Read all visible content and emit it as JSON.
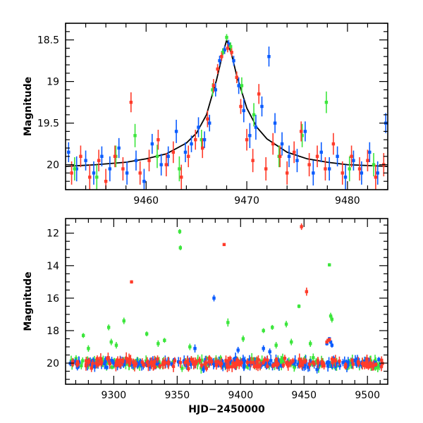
{
  "chart_data": [
    {
      "type": "scatter",
      "panel": "top",
      "xlabel": "",
      "ylabel": "Magnitude",
      "xlim": [
        9452,
        9484
      ],
      "ylim": [
        20.3,
        18.3
      ],
      "y_inverted": true,
      "xticks": [
        9460,
        9470,
        9480
      ],
      "xtick_labels": [
        "9460",
        "9470",
        "9480"
      ],
      "yticks": [
        18.5,
        19,
        19.5,
        20
      ],
      "ytick_labels": [
        "18.5",
        "19",
        "19.5",
        "20"
      ],
      "grid": false,
      "colors": {
        "blue": "#0b5cff",
        "green": "#3ce63c",
        "red": "#ff3b2a",
        "model": "#000000"
      },
      "model_curve": {
        "x": [
          9452,
          9455,
          9458,
          9460,
          9462,
          9464,
          9465,
          9466,
          9467,
          9467.5,
          9468,
          9468.5,
          9469,
          9470,
          9471,
          9472,
          9474,
          9476,
          9478,
          9480,
          9484
        ],
        "y": [
          20.02,
          20.0,
          19.97,
          19.93,
          19.87,
          19.74,
          19.62,
          19.4,
          18.98,
          18.72,
          18.5,
          18.68,
          18.93,
          19.32,
          19.55,
          19.69,
          19.85,
          19.93,
          19.97,
          20.0,
          20.02
        ]
      },
      "series": [
        {
          "color": "blue",
          "x": [
            9452.3,
            9453.1,
            9454.0,
            9454.8,
            9455.6,
            9456.4,
            9457.3,
            9458.1,
            9459.0,
            9459.8,
            9460.6,
            9461.5,
            9462.2,
            9463.0,
            9463.9,
            9464.5,
            9465.2,
            9465.8,
            9466.3,
            9466.9,
            9467.3,
            9467.8,
            9468.2,
            9468.7,
            9469.2,
            9469.7,
            9470.3,
            9470.9,
            9471.5,
            9472.2,
            9472.8,
            9473.5,
            9474.2,
            9475.0,
            9475.8,
            9476.6,
            9477.4,
            9478.2,
            9479.0,
            9479.8,
            9480.6,
            9481.4,
            9482.2,
            9483.0,
            9483.8
          ],
          "y": [
            19.85,
            20.05,
            19.95,
            20.1,
            19.9,
            20.05,
            19.8,
            20.1,
            19.95,
            20.2,
            19.75,
            20.0,
            19.9,
            19.6,
            19.85,
            19.75,
            19.55,
            19.7,
            19.5,
            19.1,
            18.75,
            18.62,
            18.55,
            18.75,
            19.05,
            19.35,
            19.65,
            19.55,
            19.3,
            18.7,
            19.5,
            19.75,
            19.9,
            19.95,
            19.6,
            20.1,
            19.85,
            20.05,
            19.9,
            20.15,
            19.95,
            20.1,
            19.85,
            20.1,
            19.5
          ],
          "err": [
            0.12,
            0.15,
            0.12,
            0.14,
            0.12,
            0.15,
            0.12,
            0.14,
            0.12,
            0.15,
            0.12,
            0.13,
            0.12,
            0.14,
            0.12,
            0.1,
            0.12,
            0.1,
            0.1,
            0.08,
            0.06,
            0.05,
            0.05,
            0.06,
            0.1,
            0.14,
            0.15,
            0.15,
            0.12,
            0.12,
            0.12,
            0.14,
            0.13,
            0.14,
            0.12,
            0.15,
            0.12,
            0.14,
            0.12,
            0.15,
            0.12,
            0.14,
            0.12,
            0.14,
            0.12
          ]
        },
        {
          "color": "green",
          "x": [
            9452.9,
            9455.1,
            9457.0,
            9458.9,
            9461.1,
            9463.3,
            9465.5,
            9466.6,
            9467.6,
            9468.0,
            9468.4,
            9469.0,
            9469.5,
            9470.7,
            9473.2,
            9475.5,
            9477.9,
            9480.2,
            9482.6
          ],
          "y": [
            20.05,
            20.15,
            19.9,
            19.65,
            19.9,
            20.05,
            19.7,
            19.1,
            18.65,
            18.47,
            18.58,
            18.95,
            19.05,
            19.4,
            19.9,
            19.65,
            19.25,
            20.05,
            20.0
          ],
          "err": [
            0.14,
            0.15,
            0.13,
            0.14,
            0.14,
            0.15,
            0.12,
            0.08,
            0.05,
            0.04,
            0.05,
            0.07,
            0.1,
            0.14,
            0.13,
            0.14,
            0.13,
            0.15,
            0.14
          ]
        },
        {
          "color": "red",
          "x": [
            9452.6,
            9453.5,
            9454.4,
            9455.3,
            9456.0,
            9456.9,
            9457.7,
            9458.5,
            9459.4,
            9460.3,
            9461.2,
            9462.0,
            9462.7,
            9463.5,
            9464.2,
            9464.9,
            9465.6,
            9466.1,
            9466.7,
            9467.1,
            9467.5,
            9468.1,
            9468.5,
            9469.0,
            9469.4,
            9470.0,
            9470.6,
            9471.2,
            9471.9,
            9472.6,
            9473.3,
            9474.0,
            9474.7,
            9475.4,
            9476.2,
            9477.0,
            9477.8,
            9478.6,
            9479.5,
            9480.4,
            9481.2,
            9482.0,
            9482.8,
            9483.6
          ],
          "y": [
            20.1,
            19.9,
            20.15,
            19.95,
            20.2,
            19.9,
            20.05,
            19.25,
            20.1,
            19.95,
            19.7,
            20.0,
            19.85,
            20.15,
            19.9,
            19.7,
            19.8,
            19.45,
            19.05,
            18.85,
            18.7,
            18.6,
            18.65,
            18.95,
            19.3,
            19.7,
            19.95,
            19.15,
            20.05,
            19.75,
            19.9,
            20.1,
            19.85,
            19.6,
            20.0,
            19.9,
            20.05,
            19.75,
            20.1,
            19.9,
            20.05,
            19.95,
            20.15,
            20.0
          ],
          "err": [
            0.14,
            0.13,
            0.15,
            0.13,
            0.15,
            0.13,
            0.14,
            0.12,
            0.14,
            0.13,
            0.12,
            0.14,
            0.13,
            0.15,
            0.13,
            0.12,
            0.12,
            0.1,
            0.08,
            0.06,
            0.05,
            0.05,
            0.05,
            0.07,
            0.09,
            0.13,
            0.14,
            0.12,
            0.14,
            0.13,
            0.13,
            0.14,
            0.13,
            0.12,
            0.14,
            0.13,
            0.14,
            0.13,
            0.14,
            0.13,
            0.14,
            0.13,
            0.15,
            0.14
          ]
        }
      ]
    },
    {
      "type": "scatter",
      "panel": "bottom",
      "xlabel": "HJD−2450000",
      "ylabel": "Magnitude",
      "xlim": [
        9262,
        9516
      ],
      "ylim": [
        21.3,
        11.1
      ],
      "y_inverted": true,
      "xticks": [
        9300,
        9350,
        9400,
        9450,
        9500
      ],
      "xtick_labels": [
        "9300",
        "9350",
        "9400",
        "9450",
        "9500"
      ],
      "yticks": [
        12,
        14,
        16,
        18,
        20
      ],
      "ytick_labels": [
        "12",
        "14",
        "16",
        "18",
        "20"
      ],
      "grid": false,
      "colors": {
        "blue": "#0b5cff",
        "green": "#3ce63c",
        "red": "#ff3b2a"
      },
      "baseline": {
        "x_start": 9265,
        "x_end": 9512,
        "mag": 20.0,
        "scatter": 0.35,
        "count_per_series": 180
      },
      "series": [
        {
          "color": "green",
          "x": [
            9352,
            9352.5,
            9276,
            9296,
            9298,
            9308,
            9326,
            9340,
            9390,
            9418,
            9425,
            9436,
            9446,
            9470,
            9471,
            9472,
            9280,
            9302,
            9335,
            9360,
            9402,
            9428,
            9440,
            9455
          ],
          "y": [
            11.9,
            12.9,
            18.3,
            17.8,
            18.7,
            17.4,
            18.2,
            18.6,
            17.5,
            18.0,
            17.8,
            17.6,
            16.5,
            13.95,
            17.1,
            17.3,
            19.1,
            18.9,
            18.8,
            19.0,
            18.5,
            18.9,
            18.7,
            18.8
          ],
          "err": [
            0.15,
            0.15,
            0.15,
            0.18,
            0.2,
            0.2,
            0.15,
            0.15,
            0.25,
            0.15,
            0.15,
            0.2,
            0.12,
            0.1,
            0.2,
            0.2,
            0.2,
            0.2,
            0.2,
            0.2,
            0.2,
            0.2,
            0.2,
            0.2
          ]
        },
        {
          "color": "blue",
          "x": [
            9379,
            9364,
            9398,
            9418,
            9423,
            9468,
            9469,
            9470,
            9471,
            9472
          ],
          "y": [
            16.0,
            19.1,
            19.2,
            19.1,
            19.3,
            18.8,
            18.6,
            18.5,
            18.7,
            18.9
          ],
          "err": [
            0.2,
            0.25,
            0.2,
            0.2,
            0.2,
            0.12,
            0.1,
            0.1,
            0.12,
            0.15
          ]
        },
        {
          "color": "red",
          "x": [
            9314,
            9387,
            9448,
            9452,
            9468,
            9469,
            9470
          ],
          "y": [
            15.0,
            12.7,
            11.6,
            15.6,
            18.7,
            18.6,
            18.55
          ],
          "err": [
            0.1,
            0.08,
            0.2,
            0.25,
            0.1,
            0.1,
            0.1
          ]
        }
      ]
    }
  ]
}
